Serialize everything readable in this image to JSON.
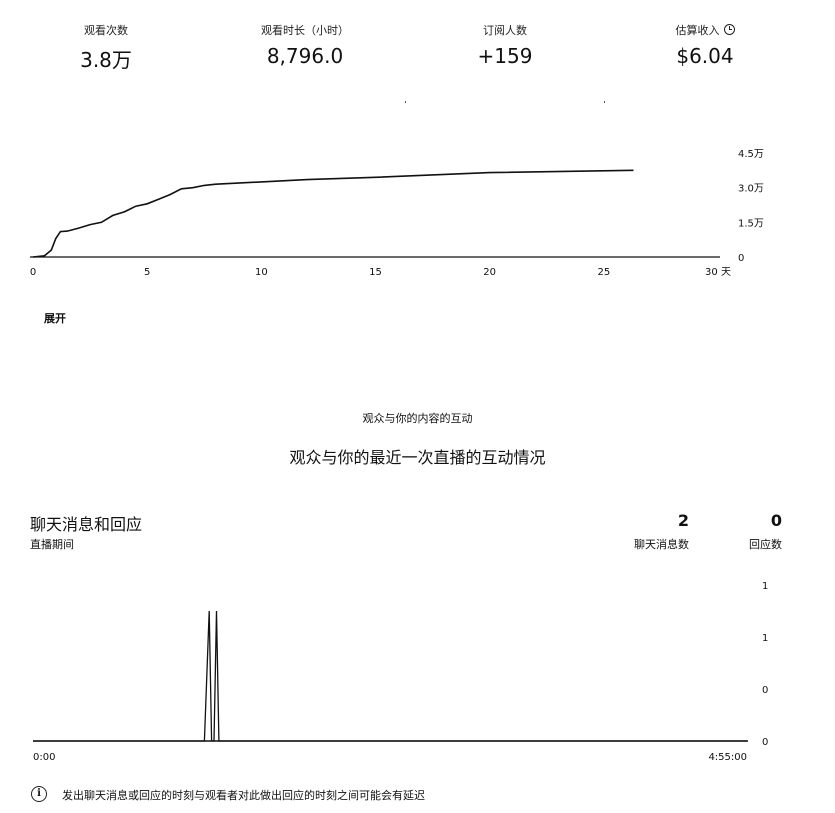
{
  "metrics": [
    {
      "label": "观看次数",
      "value": "3.8万"
    },
    {
      "label": "观看时长（小时）",
      "value": "8,796.0"
    },
    {
      "label": "订阅人数",
      "value": "+159"
    },
    {
      "label": "估算收入",
      "value": "$6.04",
      "icon": "clock-icon"
    }
  ],
  "chart_data": [
    {
      "type": "line",
      "x_ticks": [
        "0",
        "5",
        "10",
        "15",
        "20",
        "25",
        "30 天"
      ],
      "y_ticks": [
        "4.5万",
        "3.0万",
        "1.5万",
        "0"
      ],
      "ylim": [
        0,
        45000
      ],
      "xlim": [
        0,
        30
      ],
      "x": [
        0,
        0.5,
        0.8,
        1.0,
        1.2,
        1.5,
        2.0,
        2.5,
        3.0,
        3.5,
        4.0,
        4.5,
        5.0,
        5.5,
        6.0,
        6.5,
        7.0,
        7.5,
        8,
        10,
        12,
        15,
        20,
        26.3
      ],
      "values": [
        0,
        500,
        3000,
        8000,
        11000,
        11200,
        12500,
        14000,
        15000,
        18000,
        19500,
        22000,
        23000,
        25000,
        27000,
        29500,
        30000,
        31000,
        31500,
        32500,
        33500,
        34500,
        36500,
        37500
      ]
    },
    {
      "type": "line",
      "x_ticks": [
        "0:00",
        "4:55:00"
      ],
      "y_ticks": [
        "1",
        "1",
        "0",
        "0"
      ],
      "xlim": [
        0,
        295
      ],
      "ylim": [
        0,
        2
      ],
      "x": [
        0,
        70.8,
        72.8,
        73.8,
        74.8,
        75.8,
        76.8,
        78.8,
        295
      ],
      "values": [
        0,
        0,
        2,
        0,
        0,
        2,
        0,
        0,
        0
      ]
    }
  ],
  "expand_label": "展开",
  "section": {
    "subtitle": "观众与你的内容的互动",
    "title": "观众与你的最近一次直播的互动情况"
  },
  "chat": {
    "title": "聊天消息和回应",
    "subtitle": "直播期间",
    "messages_count": "2",
    "messages_label": "聊天消息数",
    "responses_count": "0",
    "responses_label": "回应数"
  },
  "note": {
    "icon": "info-icon",
    "text": "发出聊天消息或回应的时刻与观看者对此做出回应的时刻之间可能会有延迟"
  }
}
